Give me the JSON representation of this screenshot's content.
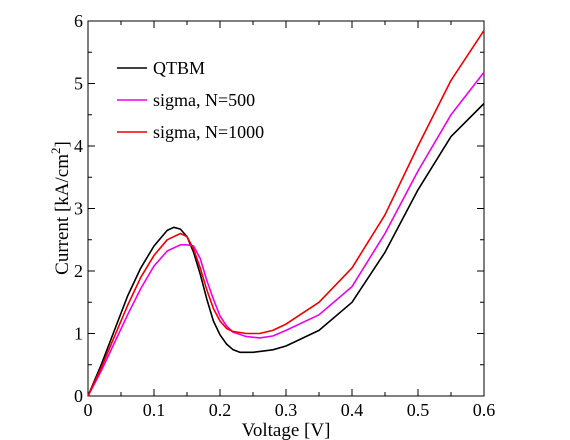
{
  "chart_data": {
    "type": "line",
    "xlabel": "Voltage [V]",
    "ylabel_main": "Current [kA/cm",
    "ylabel_sup": "2",
    "ylabel_close": "]",
    "xlim": [
      0,
      0.6
    ],
    "ylim": [
      0,
      6
    ],
    "x_ticks": [
      "0",
      "0.1",
      "0.2",
      "0.3",
      "0.4",
      "0.5",
      "0.6"
    ],
    "y_ticks": [
      "0",
      "1",
      "2",
      "3",
      "4",
      "5",
      "6"
    ],
    "grid": false,
    "legend_position": "top-left",
    "series": [
      {
        "name": "QTBM",
        "color": "#000000",
        "points": [
          [
            0,
            0
          ],
          [
            0.02,
            0.5
          ],
          [
            0.04,
            1.05
          ],
          [
            0.06,
            1.6
          ],
          [
            0.08,
            2.05
          ],
          [
            0.1,
            2.4
          ],
          [
            0.12,
            2.65
          ],
          [
            0.13,
            2.7
          ],
          [
            0.14,
            2.67
          ],
          [
            0.15,
            2.55
          ],
          [
            0.16,
            2.3
          ],
          [
            0.17,
            1.95
          ],
          [
            0.18,
            1.55
          ],
          [
            0.19,
            1.2
          ],
          [
            0.2,
            0.98
          ],
          [
            0.21,
            0.83
          ],
          [
            0.22,
            0.74
          ],
          [
            0.23,
            0.7
          ],
          [
            0.25,
            0.7
          ],
          [
            0.28,
            0.74
          ],
          [
            0.3,
            0.8
          ],
          [
            0.35,
            1.05
          ],
          [
            0.4,
            1.5
          ],
          [
            0.45,
            2.3
          ],
          [
            0.5,
            3.3
          ],
          [
            0.55,
            4.15
          ],
          [
            0.6,
            4.68
          ]
        ]
      },
      {
        "name": "sigma, N=500",
        "color": "#ee00ee",
        "points": [
          [
            0,
            0
          ],
          [
            0.02,
            0.4
          ],
          [
            0.04,
            0.85
          ],
          [
            0.06,
            1.3
          ],
          [
            0.08,
            1.72
          ],
          [
            0.1,
            2.08
          ],
          [
            0.12,
            2.32
          ],
          [
            0.14,
            2.42
          ],
          [
            0.15,
            2.42
          ],
          [
            0.16,
            2.4
          ],
          [
            0.17,
            2.2
          ],
          [
            0.18,
            1.85
          ],
          [
            0.19,
            1.55
          ],
          [
            0.2,
            1.28
          ],
          [
            0.21,
            1.12
          ],
          [
            0.22,
            1.02
          ],
          [
            0.24,
            0.95
          ],
          [
            0.26,
            0.93
          ],
          [
            0.28,
            0.96
          ],
          [
            0.3,
            1.05
          ],
          [
            0.35,
            1.3
          ],
          [
            0.4,
            1.75
          ],
          [
            0.45,
            2.6
          ],
          [
            0.5,
            3.6
          ],
          [
            0.55,
            4.5
          ],
          [
            0.6,
            5.18
          ]
        ]
      },
      {
        "name": "sigma, N=1000",
        "color": "#ee0000",
        "points": [
          [
            0,
            0
          ],
          [
            0.02,
            0.45
          ],
          [
            0.04,
            0.95
          ],
          [
            0.06,
            1.45
          ],
          [
            0.08,
            1.9
          ],
          [
            0.1,
            2.25
          ],
          [
            0.12,
            2.5
          ],
          [
            0.14,
            2.6
          ],
          [
            0.15,
            2.55
          ],
          [
            0.16,
            2.35
          ],
          [
            0.17,
            2.05
          ],
          [
            0.18,
            1.7
          ],
          [
            0.19,
            1.4
          ],
          [
            0.2,
            1.2
          ],
          [
            0.21,
            1.08
          ],
          [
            0.22,
            1.03
          ],
          [
            0.24,
            1.0
          ],
          [
            0.26,
            1.0
          ],
          [
            0.28,
            1.05
          ],
          [
            0.3,
            1.15
          ],
          [
            0.35,
            1.5
          ],
          [
            0.4,
            2.05
          ],
          [
            0.45,
            2.9
          ],
          [
            0.5,
            4.0
          ],
          [
            0.55,
            5.05
          ],
          [
            0.6,
            5.85
          ]
        ]
      }
    ]
  }
}
